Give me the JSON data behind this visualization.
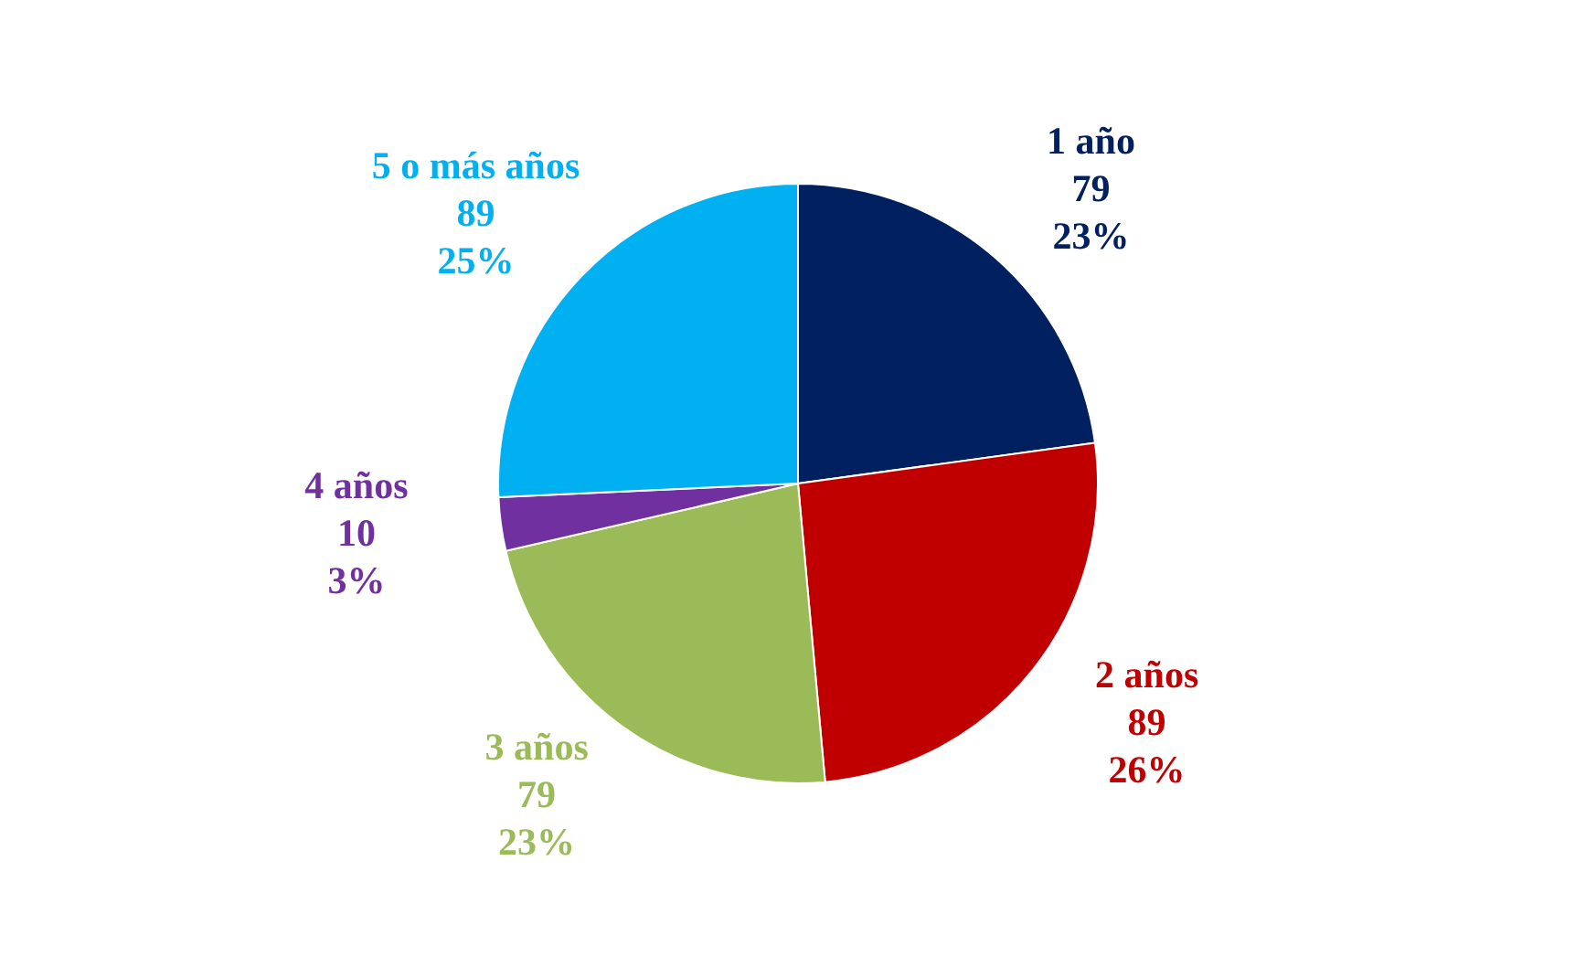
{
  "chart_data": {
    "type": "pie",
    "categories": [
      "1 año",
      "2 años",
      "3 años",
      "4 años",
      "5 o más años"
    ],
    "values": [
      79,
      89,
      79,
      10,
      89
    ],
    "colors": [
      "#002060",
      "#c00000",
      "#9bbb59",
      "#7030a0",
      "#00b0f0"
    ],
    "value_labels": [
      "79\n23%",
      "89\n26%",
      "79\n23%",
      "10\n3%",
      "89\n25%"
    ],
    "legend": false
  }
}
